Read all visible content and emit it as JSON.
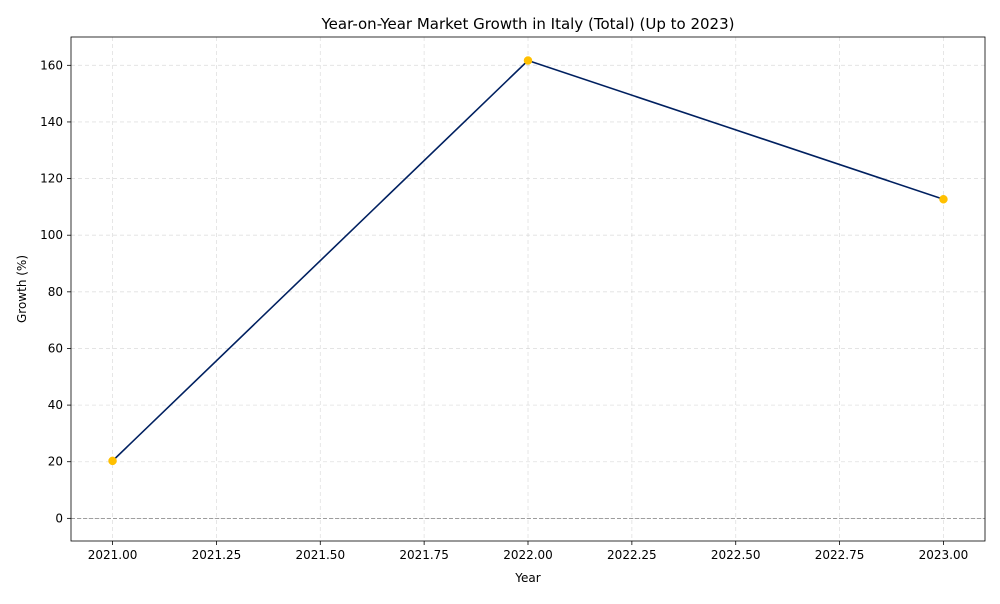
{
  "chart_data": {
    "type": "line",
    "title": "Year-on-Year Market Growth in Italy (Total) (Up to 2023)",
    "xlabel": "Year",
    "ylabel": "Growth (%)",
    "x": [
      2021,
      2022,
      2023
    ],
    "series": [
      {
        "values": [
          20.3,
          161.7,
          112.7
        ]
      }
    ],
    "xlim": [
      2020.9,
      2023.1
    ],
    "ylim": [
      -8,
      170
    ],
    "xticks": [
      2021.0,
      2021.25,
      2021.5,
      2021.75,
      2022.0,
      2022.25,
      2022.5,
      2022.75,
      2023.0
    ],
    "xtick_labels": [
      "2021.00",
      "2021.25",
      "2021.50",
      "2021.75",
      "2022.00",
      "2022.25",
      "2022.50",
      "2022.75",
      "2023.00"
    ],
    "yticks": [
      0,
      20,
      40,
      60,
      80,
      100,
      120,
      140,
      160
    ],
    "ytick_labels": [
      "0",
      "20",
      "40",
      "60",
      "80",
      "100",
      "120",
      "140",
      "160"
    ],
    "reference_line": 0,
    "grid": true,
    "colors": {
      "line": "#002060",
      "marker": "#FFC000",
      "reference": "#808080"
    }
  }
}
